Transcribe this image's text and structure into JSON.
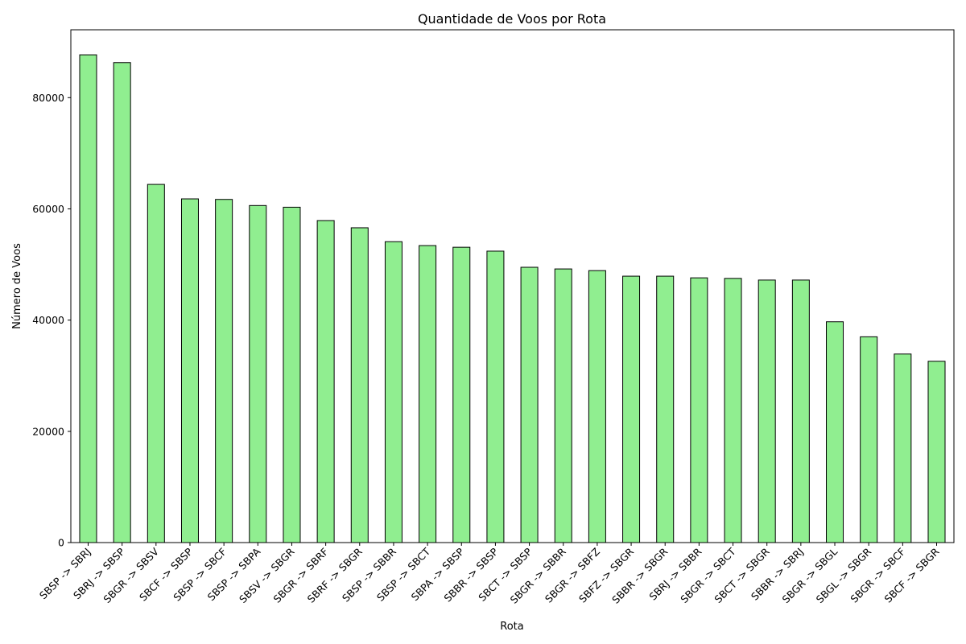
{
  "chart_data": {
    "type": "bar",
    "title": "Quantidade de Voos por Rota",
    "xlabel": "Rota",
    "ylabel": "Número de Voos",
    "ylim": [
      0,
      92200
    ],
    "yticks": [
      0,
      20000,
      40000,
      60000,
      80000
    ],
    "grid": false,
    "legend": "none",
    "bar_color": "#90ee90",
    "edge_color": "#000000",
    "categories": [
      "SBSP -> SBRJ",
      "SBRJ -> SBSP",
      "SBGR -> SBSV",
      "SBCF -> SBSP",
      "SBSP -> SBCF",
      "SBSP -> SBPA",
      "SBSV -> SBGR",
      "SBGR -> SBRF",
      "SBRF -> SBGR",
      "SBSP -> SBBR",
      "SBSP -> SBCT",
      "SBPA -> SBSP",
      "SBBR -> SBSP",
      "SBCT -> SBSP",
      "SBGR -> SBBR",
      "SBGR -> SBFZ",
      "SBFZ -> SBGR",
      "SBBR -> SBGR",
      "SBRJ -> SBBR",
      "SBGR -> SBCT",
      "SBCT -> SBGR",
      "SBBR -> SBRJ",
      "SBGR -> SBGL",
      "SBGL -> SBGR",
      "SBGR -> SBCF",
      "SBCF -> SBGR"
    ],
    "values": [
      87700,
      86300,
      64400,
      61800,
      61700,
      60600,
      60300,
      57900,
      56600,
      54100,
      53400,
      53100,
      52400,
      49500,
      49200,
      48900,
      47900,
      47900,
      47600,
      47500,
      47200,
      47200,
      39700,
      37000,
      33900,
      32600
    ]
  }
}
